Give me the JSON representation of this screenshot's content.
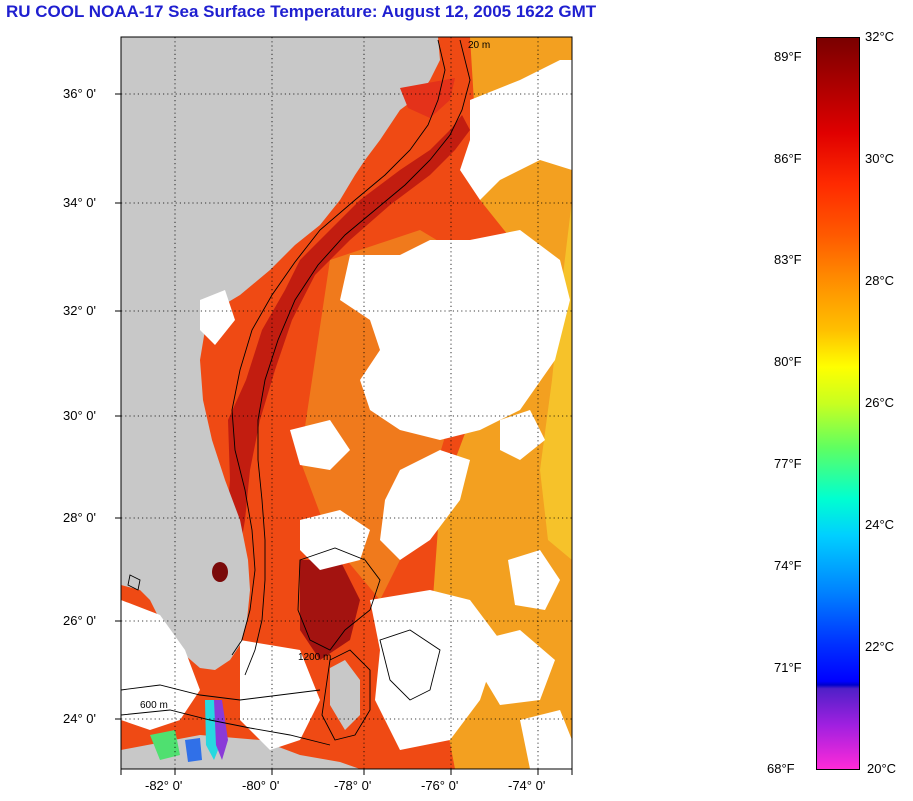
{
  "title": "RU COOL  NOAA-17  Sea Surface Temperature:  August 12, 2005 1622 GMT",
  "map": {
    "lat_labels": [
      "36° 0'",
      "34° 0'",
      "32° 0'",
      "30° 0'",
      "28° 0'",
      "26° 0'",
      "24° 0'"
    ],
    "lon_labels": [
      "-82° 0'",
      "-80° 0'",
      "-78° 0'",
      "-76° 0'",
      "-74° 0'"
    ],
    "contour_labels": [
      "20 m",
      "600 m",
      "1200 m"
    ],
    "colors": {
      "land": "#c8c8c8",
      "cloud": "#ffffff",
      "sst_warm": "#ee3a12",
      "sst_hot": "#a01010",
      "sst_mid": "#f07a1c",
      "sst_cool": "#f3a51f",
      "grid": "#000000"
    }
  },
  "colorbar": {
    "fahrenheit_labels": [
      "89°F",
      "86°F",
      "83°F",
      "80°F",
      "77°F",
      "74°F",
      "71°F",
      "68°F"
    ],
    "celsius_labels": [
      "32°C",
      "30°C",
      "28°C",
      "26°C",
      "24°C",
      "22°C",
      "20°C"
    ]
  }
}
